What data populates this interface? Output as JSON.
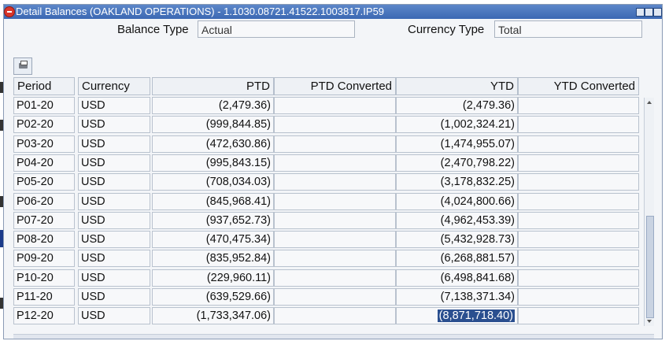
{
  "window": {
    "title": "Detail Balances (OAKLAND OPERATIONS) - 1.1030.08721.41522.1003817.IP59"
  },
  "fields": {
    "balance_type_label": "Balance Type",
    "balance_type_value": "Actual",
    "currency_type_label": "Currency Type",
    "currency_type_value": "Total"
  },
  "table": {
    "headers": [
      "Period",
      "Currency",
      "PTD",
      "PTD Converted",
      "YTD",
      "YTD Converted"
    ],
    "rows": [
      {
        "period": "P01-20",
        "currency": "USD",
        "ptd": "(2,479.36)",
        "ptd_conv": "",
        "ytd": "(2,479.36)",
        "ytd_conv": ""
      },
      {
        "period": "P02-20",
        "currency": "USD",
        "ptd": "(999,844.85)",
        "ptd_conv": "",
        "ytd": "(1,002,324.21)",
        "ytd_conv": ""
      },
      {
        "period": "P03-20",
        "currency": "USD",
        "ptd": "(472,630.86)",
        "ptd_conv": "",
        "ytd": "(1,474,955.07)",
        "ytd_conv": ""
      },
      {
        "period": "P04-20",
        "currency": "USD",
        "ptd": "(995,843.15)",
        "ptd_conv": "",
        "ytd": "(2,470,798.22)",
        "ytd_conv": ""
      },
      {
        "period": "P05-20",
        "currency": "USD",
        "ptd": "(708,034.03)",
        "ptd_conv": "",
        "ytd": "(3,178,832.25)",
        "ytd_conv": ""
      },
      {
        "period": "P06-20",
        "currency": "USD",
        "ptd": "(845,968.41)",
        "ptd_conv": "",
        "ytd": "(4,024,800.66)",
        "ytd_conv": ""
      },
      {
        "period": "P07-20",
        "currency": "USD",
        "ptd": "(937,652.73)",
        "ptd_conv": "",
        "ytd": "(4,962,453.39)",
        "ytd_conv": ""
      },
      {
        "period": "P08-20",
        "currency": "USD",
        "ptd": "(470,475.34)",
        "ptd_conv": "",
        "ytd": "(5,432,928.73)",
        "ytd_conv": ""
      },
      {
        "period": "P09-20",
        "currency": "USD",
        "ptd": "(835,952.84)",
        "ptd_conv": "",
        "ytd": "(6,268,881.57)",
        "ytd_conv": ""
      },
      {
        "period": "P10-20",
        "currency": "USD",
        "ptd": "(229,960.11)",
        "ptd_conv": "",
        "ytd": "(6,498,841.68)",
        "ytd_conv": ""
      },
      {
        "period": "P11-20",
        "currency": "USD",
        "ptd": "(639,529.66)",
        "ptd_conv": "",
        "ytd": "(7,138,371.34)",
        "ytd_conv": ""
      },
      {
        "period": "P12-20",
        "currency": "USD",
        "ptd": "(1,733,347.06)",
        "ptd_conv": "",
        "ytd": "(8,871,718.40)",
        "ytd_conv": ""
      }
    ]
  },
  "colors": {
    "titlebar": "#3b68b3",
    "selection": "#2a4f8f"
  },
  "icons": {
    "close": "close-icon",
    "print": "print-icon"
  }
}
